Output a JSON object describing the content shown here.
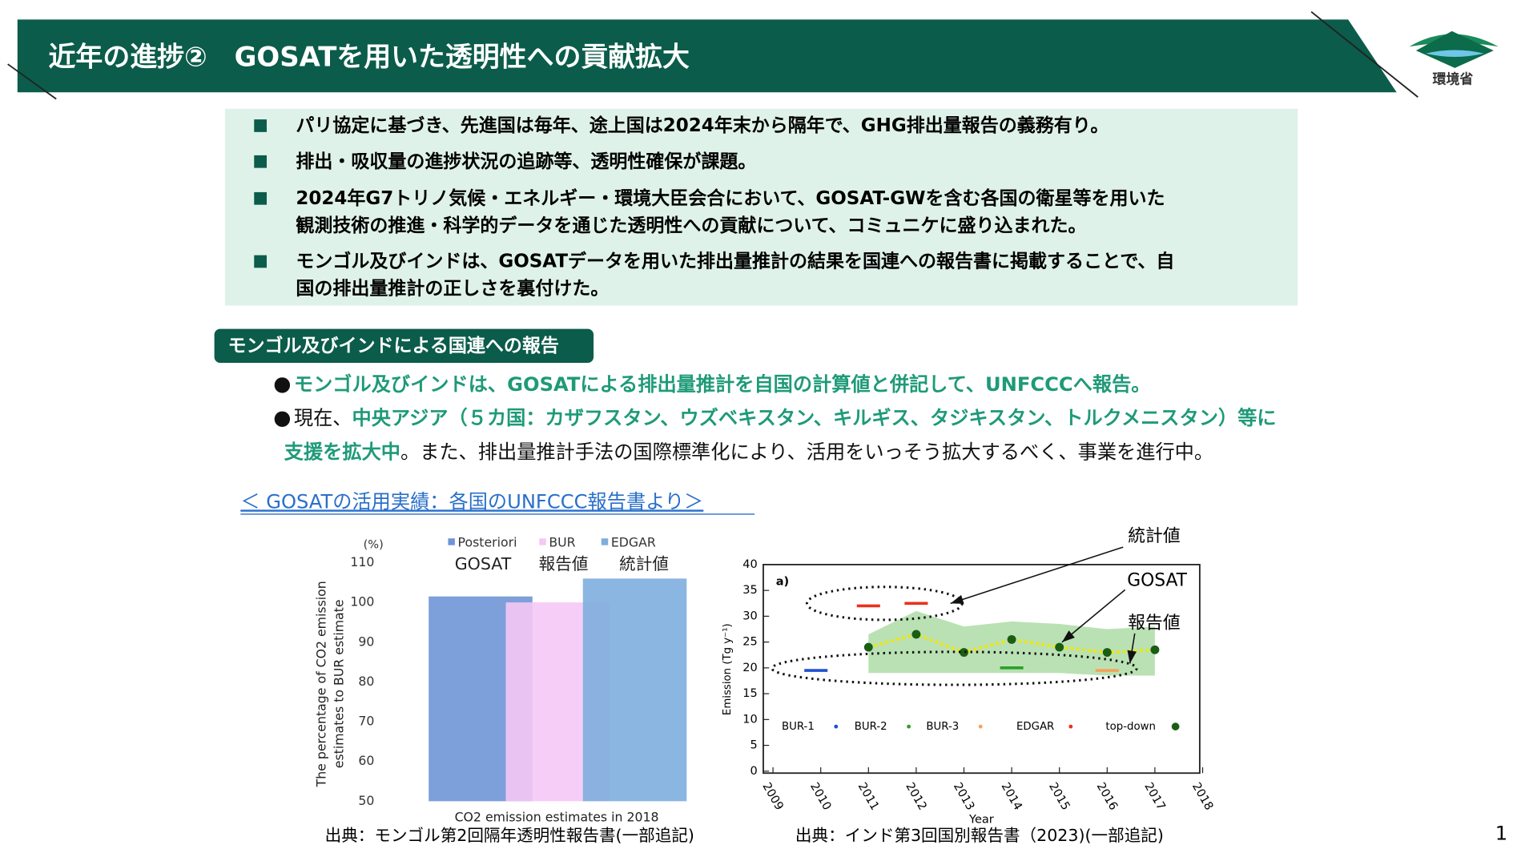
{
  "header": {
    "title": "近年の進捗②　GOSATを用いた透明性への貢献拡大",
    "logo": "環境省"
  },
  "summary": {
    "items": [
      [
        "パリ協定に基づき、先進国は毎年、途上国は2024年末から隔年で、GHG排出量報告の義務有り。"
      ],
      [
        "排出・吸収量の進捗状況の追跡等、透明性確保が課題。"
      ],
      [
        "2024年G7トリノ気候・エネルギー・環境大臣会合において、GOSAT-GWを含む各国の衛星等を用いた",
        "観測技術の推進・科学的データを通じた透明性への貢献について、コミュニケに盛り込まれた。"
      ],
      [
        "モンゴル及びインドは、GOSATデータを用いた排出量推計の結果を国連への報告書に掲載することで、自",
        "国の排出量推計の正しさを裏付けた。"
      ]
    ]
  },
  "section": {
    "tag": "モンゴル及びインドによる国連への報告",
    "bullets": [
      [
        [
          {
            "text": "モンゴル及びインドは、GOSATによる排出量推計を自国の計算値と併記して、UNFCCCへ報告。",
            "emphasis": true
          }
        ]
      ],
      [
        [
          {
            "text": "現在、",
            "emphasis": false
          },
          {
            "text": "中央アジア（５カ国：カザフスタン、ウズベキスタン、キルギス、タジキスタン、トルクメニスタン）等に",
            "emphasis": true
          }
        ],
        [
          {
            "text": "支援を拡大中",
            "emphasis": true
          },
          {
            "text": "。また、排出量推計手法の国際標準化により、活用をいっそう拡大するべく、事業を進行中。",
            "emphasis": false
          }
        ]
      ]
    ]
  },
  "caption": "＜ GOSATの活用実績：各国のUNFCCC報告書より＞",
  "sources": [
    "出典：モンゴル第2回隔年透明性報告書(一部追記)",
    "出典：インド第3回国別報告書（2023)(一部追記)"
  ],
  "page_number": 1,
  "chart_data": [
    {
      "type": "bar",
      "xlabel": "CO2 emission estimates in 2018",
      "ylabel": [
        "The percentage of CO2 emission",
        "estimates to BUR estimate"
      ],
      "y_unit": "(%)",
      "ylim": [
        50,
        110
      ],
      "yticks": [
        50,
        60,
        70,
        80,
        90,
        100,
        110
      ],
      "series": [
        {
          "name": "Posteriori",
          "note": "GOSAT",
          "color": "#6f95d6",
          "values": [
            101.5
          ]
        },
        {
          "name": "BUR",
          "note": "報告値",
          "color": "#f5c8f5",
          "values": [
            100
          ]
        },
        {
          "name": "EDGAR",
          "note": "統計値",
          "color": "#7eaede",
          "values": [
            106
          ]
        }
      ]
    },
    {
      "type": "scatter",
      "panel": "a)",
      "xlabel": "Year",
      "ylabel": "Emission (Tg y⁻¹)",
      "xlim": [
        2009,
        2018
      ],
      "xticks": [
        2009,
        2010,
        2011,
        2012,
        2013,
        2014,
        2015,
        2016,
        2017,
        2018
      ],
      "ylim": [
        0,
        40
      ],
      "yticks": [
        0,
        5,
        10,
        15,
        20,
        25,
        30,
        35,
        40
      ],
      "band": {
        "color": "#a9d9a0",
        "x": [
          2011,
          2012,
          2013,
          2014,
          2015,
          2016,
          2017
        ],
        "lower": [
          19,
          19,
          19,
          19,
          19,
          18.5,
          18.5
        ],
        "upper": [
          26.5,
          31,
          28,
          29,
          28.5,
          27.5,
          28
        ]
      },
      "series": [
        {
          "name": "BUR-1",
          "color": "#1f4fd6",
          "marker": "dash",
          "x": [
            2009.9
          ],
          "values": [
            19.5
          ]
        },
        {
          "name": "BUR-2",
          "color": "#2ca02c",
          "marker": "dash",
          "x": [
            2014
          ],
          "values": [
            20
          ]
        },
        {
          "name": "BUR-3",
          "color": "#f5a25d",
          "marker": "dash",
          "x": [
            2016
          ],
          "values": [
            19.5
          ]
        },
        {
          "name": "EDGAR",
          "color": "#e8321e",
          "marker": "dash",
          "x": [
            2011,
            2012
          ],
          "values": [
            32,
            32.5
          ]
        },
        {
          "name": "top-down",
          "color": "#1a5e12",
          "marker": "dot",
          "line_color": "#f2e600",
          "x": [
            2011,
            2012,
            2013,
            2014,
            2015,
            2016,
            2017
          ],
          "values": [
            24,
            26.5,
            23,
            25.5,
            24,
            23,
            23.5
          ]
        }
      ],
      "annotations": [
        "統計値",
        "GOSAT",
        "報告値"
      ]
    }
  ]
}
